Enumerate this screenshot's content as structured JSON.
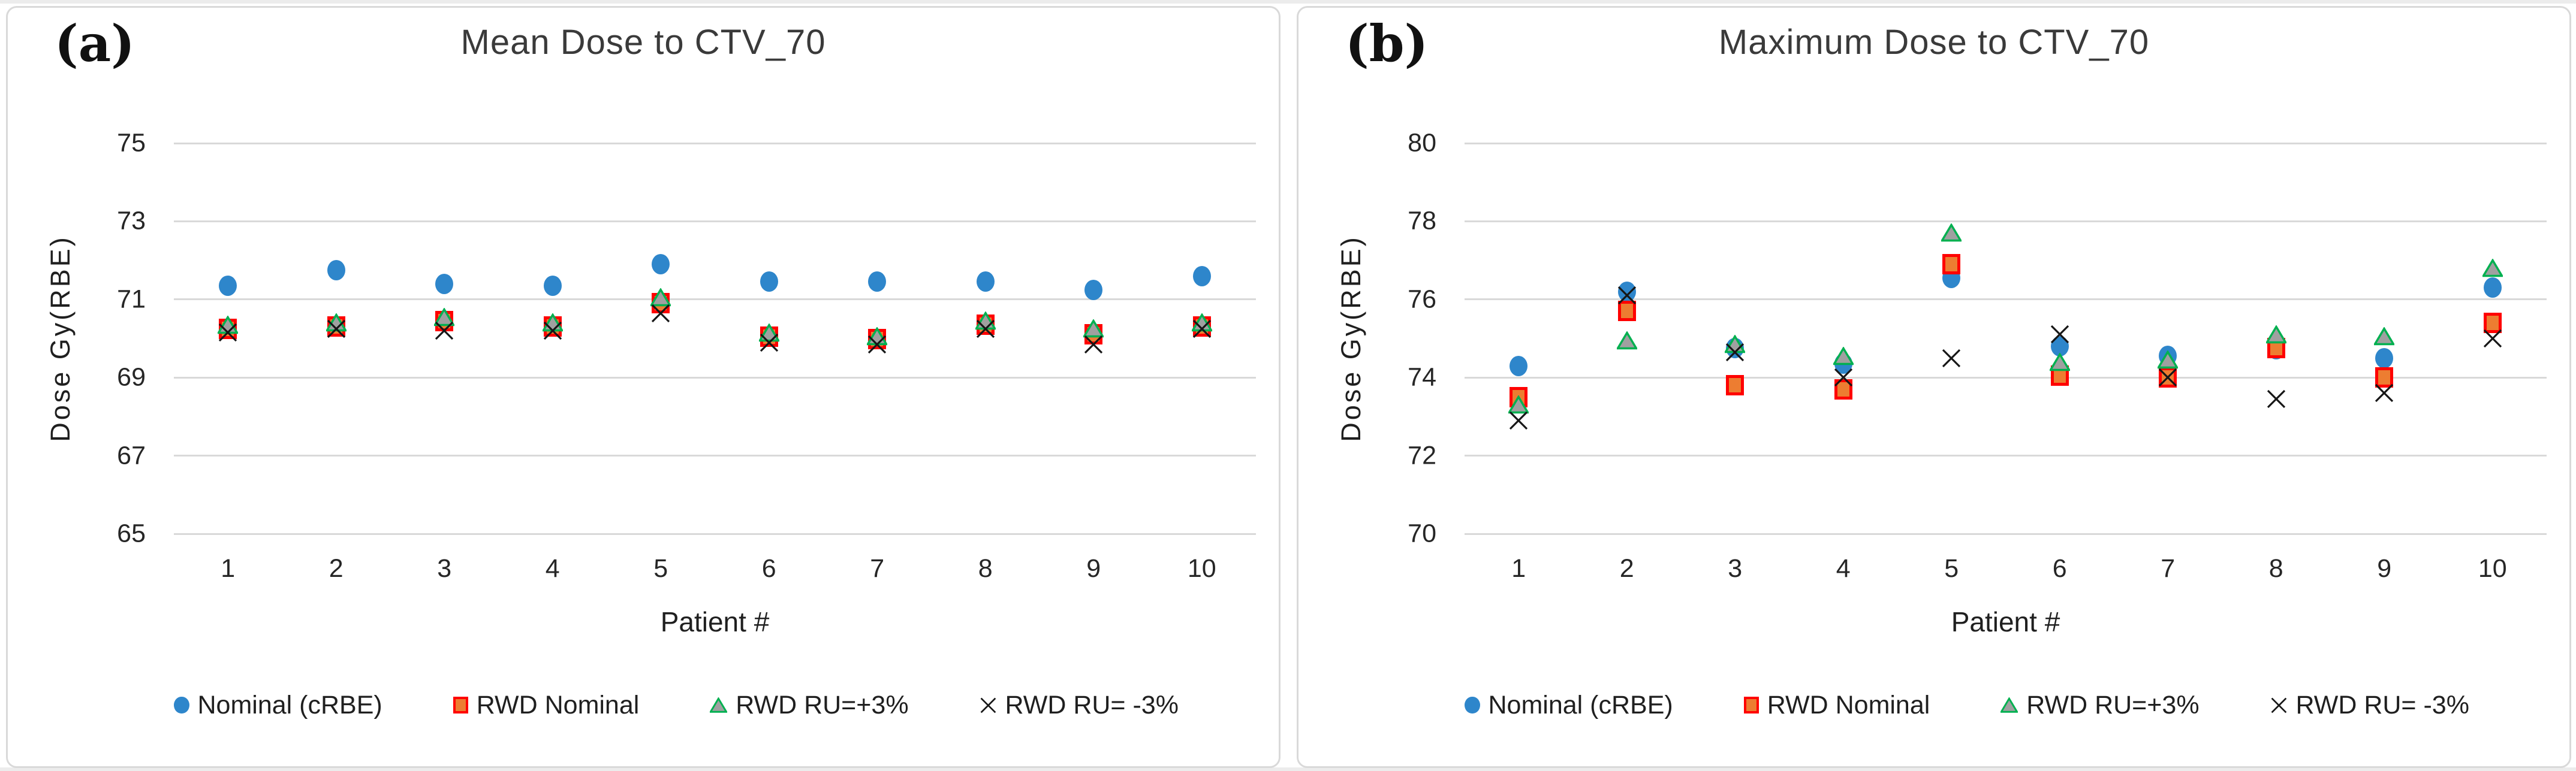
{
  "page": {
    "background": "#ffffff",
    "gridline_color": "#d9d9d9"
  },
  "legend": {
    "items": [
      {
        "label": "Nominal (cRBE)",
        "marker": "circle",
        "color": "#2E86CB"
      },
      {
        "label": "RWD Nominal",
        "marker": "square",
        "fill": "#ED7D31",
        "stroke": "#FF0000"
      },
      {
        "label": "RWD RU=+3%",
        "marker": "triangle",
        "fill": "#A0A0A0",
        "stroke": "#00B050"
      },
      {
        "label": "RWD RU= -3%",
        "marker": "x",
        "stroke": "#161616"
      }
    ]
  },
  "chart_data": [
    {
      "type": "scatter",
      "panel_label": "(a)",
      "title": "Mean Dose to CTV_70",
      "xlabel": "Patient #",
      "ylabel": "Dose Gy(RBE)",
      "ylim": [
        65,
        75
      ],
      "yticks": [
        75,
        73,
        71,
        69,
        67,
        65
      ],
      "grid": "horizontal",
      "legend_position": "bottom",
      "categories": [
        "1",
        "2",
        "3",
        "4",
        "5",
        "6",
        "7",
        "8",
        "9",
        "10"
      ],
      "series": [
        {
          "name": "Nominal (cRBE)",
          "marker": "circle",
          "values": [
            71.35,
            71.75,
            71.4,
            71.35,
            71.9,
            71.45,
            71.45,
            71.45,
            71.25,
            71.6
          ]
        },
        {
          "name": "RWD Nominal",
          "marker": "square",
          "values": [
            70.25,
            70.3,
            70.45,
            70.3,
            70.9,
            70.05,
            69.98,
            70.35,
            70.1,
            70.3
          ]
        },
        {
          "name": "RWD RU=+3%",
          "marker": "triangle",
          "values": [
            70.35,
            70.4,
            70.55,
            70.4,
            71.05,
            70.15,
            70.05,
            70.45,
            70.25,
            70.4
          ]
        },
        {
          "name": "RWD RU= -3%",
          "marker": "x",
          "values": [
            70.15,
            70.25,
            70.2,
            70.2,
            70.65,
            69.9,
            69.85,
            70.25,
            69.85,
            70.25
          ]
        }
      ]
    },
    {
      "type": "scatter",
      "panel_label": "(b)",
      "title": "Maximum Dose to CTV_70",
      "xlabel": "Patient #",
      "ylabel": "Dose Gy(RBE)",
      "ylim": [
        70,
        80
      ],
      "yticks": [
        80,
        78,
        76,
        74,
        72,
        70
      ],
      "grid": "horizontal",
      "legend_position": "bottom",
      "categories": [
        "1",
        "2",
        "3",
        "4",
        "5",
        "6",
        "7",
        "8",
        "9",
        "10"
      ],
      "series": [
        {
          "name": "Nominal (cRBE)",
          "marker": "circle",
          "values": [
            74.3,
            76.2,
            74.75,
            74.35,
            76.55,
            74.8,
            74.55,
            74.72,
            74.5,
            76.3
          ]
        },
        {
          "name": "RWD Nominal",
          "marker": "square",
          "values": [
            73.5,
            75.7,
            73.8,
            73.7,
            76.9,
            74.05,
            74.0,
            74.75,
            74.0,
            75.4
          ]
        },
        {
          "name": "RWD RU=+3%",
          "marker": "triangle",
          "values": [
            73.3,
            74.95,
            74.85,
            74.55,
            77.7,
            74.4,
            74.45,
            75.1,
            75.05,
            76.8
          ]
        },
        {
          "name": "RWD RU= -3%",
          "marker": "x",
          "values": [
            72.9,
            76.1,
            74.65,
            74.0,
            74.5,
            75.1,
            74.0,
            73.45,
            73.6,
            75.0
          ]
        }
      ]
    }
  ]
}
